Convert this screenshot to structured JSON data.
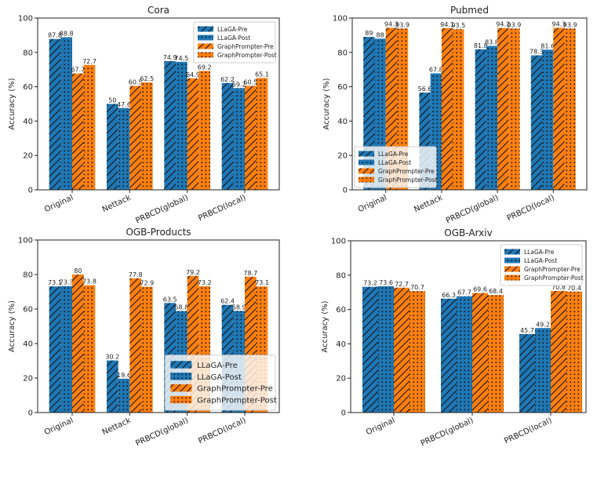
{
  "colors": {
    "llaga": "#1f77b4",
    "graphprompter": "#ff7f0e"
  },
  "chart_data": [
    {
      "type": "bar",
      "title": "Cora",
      "ylabel": "Accuracy (%)",
      "xlabel": "",
      "ylim": [
        0,
        100
      ],
      "yticks": [
        0,
        20,
        40,
        60,
        80,
        100
      ],
      "legend": "top-right",
      "categories": [
        "Original",
        "Nettack",
        "PRBCD(global)",
        "PRBCD(local)"
      ],
      "series": [
        {
          "name": "LLaGA-Pre",
          "hatch": "diagonal",
          "values": [
            87.8,
            50.0,
            74.9,
            62.2
          ]
        },
        {
          "name": "LLaGA-Post",
          "hatch": "dots",
          "values": [
            88.8,
            47.6,
            74.5,
            59.2
          ]
        },
        {
          "name": "GraphPrompter-Pre",
          "hatch": "diagonal",
          "values": [
            67.7,
            60.5,
            64.9,
            60.5
          ]
        },
        {
          "name": "GraphPrompter-Post",
          "hatch": "dots",
          "values": [
            72.7,
            62.5,
            69.2,
            65.1
          ]
        }
      ]
    },
    {
      "type": "bar",
      "title": "Pubmed",
      "ylabel": "Accuracy (%)",
      "xlabel": "",
      "ylim": [
        0,
        100
      ],
      "yticks": [
        0,
        20,
        40,
        60,
        80,
        100
      ],
      "legend": "bottom-left",
      "categories": [
        "Original",
        "Nettack",
        "PRBCD(global)",
        "PRBCD(local)"
      ],
      "series": [
        {
          "name": "LLaGA-Pre",
          "hatch": "diagonal",
          "values": [
            89.0,
            56.6,
            81.8,
            78.3
          ]
        },
        {
          "name": "LLaGA-Post",
          "hatch": "dots",
          "values": [
            88.0,
            67.8,
            83.8,
            81.6
          ]
        },
        {
          "name": "GraphPrompter-Pre",
          "hatch": "diagonal",
          "values": [
            94.3,
            94.1,
            94.2,
            94.3
          ]
        },
        {
          "name": "GraphPrompter-Post",
          "hatch": "dots",
          "values": [
            93.9,
            93.5,
            93.9,
            93.9
          ]
        }
      ]
    },
    {
      "type": "bar",
      "title": "OGB-Products",
      "ylabel": "Accuracy (%)",
      "xlabel": "",
      "ylim": [
        0,
        100
      ],
      "yticks": [
        0,
        20,
        40,
        60,
        80,
        100
      ],
      "legend": "bottom-right",
      "categories": [
        "Original",
        "Nettack",
        "PRBCD(global)",
        "PRBCD(local)"
      ],
      "series": [
        {
          "name": "LLaGA-Pre",
          "hatch": "diagonal",
          "values": [
            73.1,
            30.2,
            63.5,
            62.4
          ]
        },
        {
          "name": "LLaGA-Post",
          "hatch": "dots",
          "values": [
            73.3,
            19.6,
            58.8,
            58.9
          ]
        },
        {
          "name": "GraphPrompter-Pre",
          "hatch": "diagonal",
          "values": [
            80.0,
            77.8,
            79.2,
            78.7
          ]
        },
        {
          "name": "GraphPrompter-Post",
          "hatch": "dots",
          "values": [
            73.8,
            72.9,
            73.2,
            73.1
          ]
        }
      ]
    },
    {
      "type": "bar",
      "title": "OGB-Arxiv",
      "ylabel": "Accuracy (%)",
      "xlabel": "",
      "ylim": [
        0,
        100
      ],
      "yticks": [
        0,
        20,
        40,
        60,
        80,
        100
      ],
      "legend": "top-right",
      "categories": [
        "Original",
        "PRBCD(global)",
        "PRBCD(local)"
      ],
      "series": [
        {
          "name": "LLaGA-Pre",
          "hatch": "diagonal",
          "values": [
            73.2,
            66.3,
            45.7
          ]
        },
        {
          "name": "LLaGA-Post",
          "hatch": "dots",
          "values": [
            73.6,
            67.7,
            49.2
          ]
        },
        {
          "name": "GraphPrompter-Pre",
          "hatch": "diagonal",
          "values": [
            72.7,
            69.6,
            70.8
          ]
        },
        {
          "name": "GraphPrompter-Post",
          "hatch": "dots",
          "values": [
            70.7,
            68.4,
            70.4
          ]
        }
      ]
    }
  ]
}
